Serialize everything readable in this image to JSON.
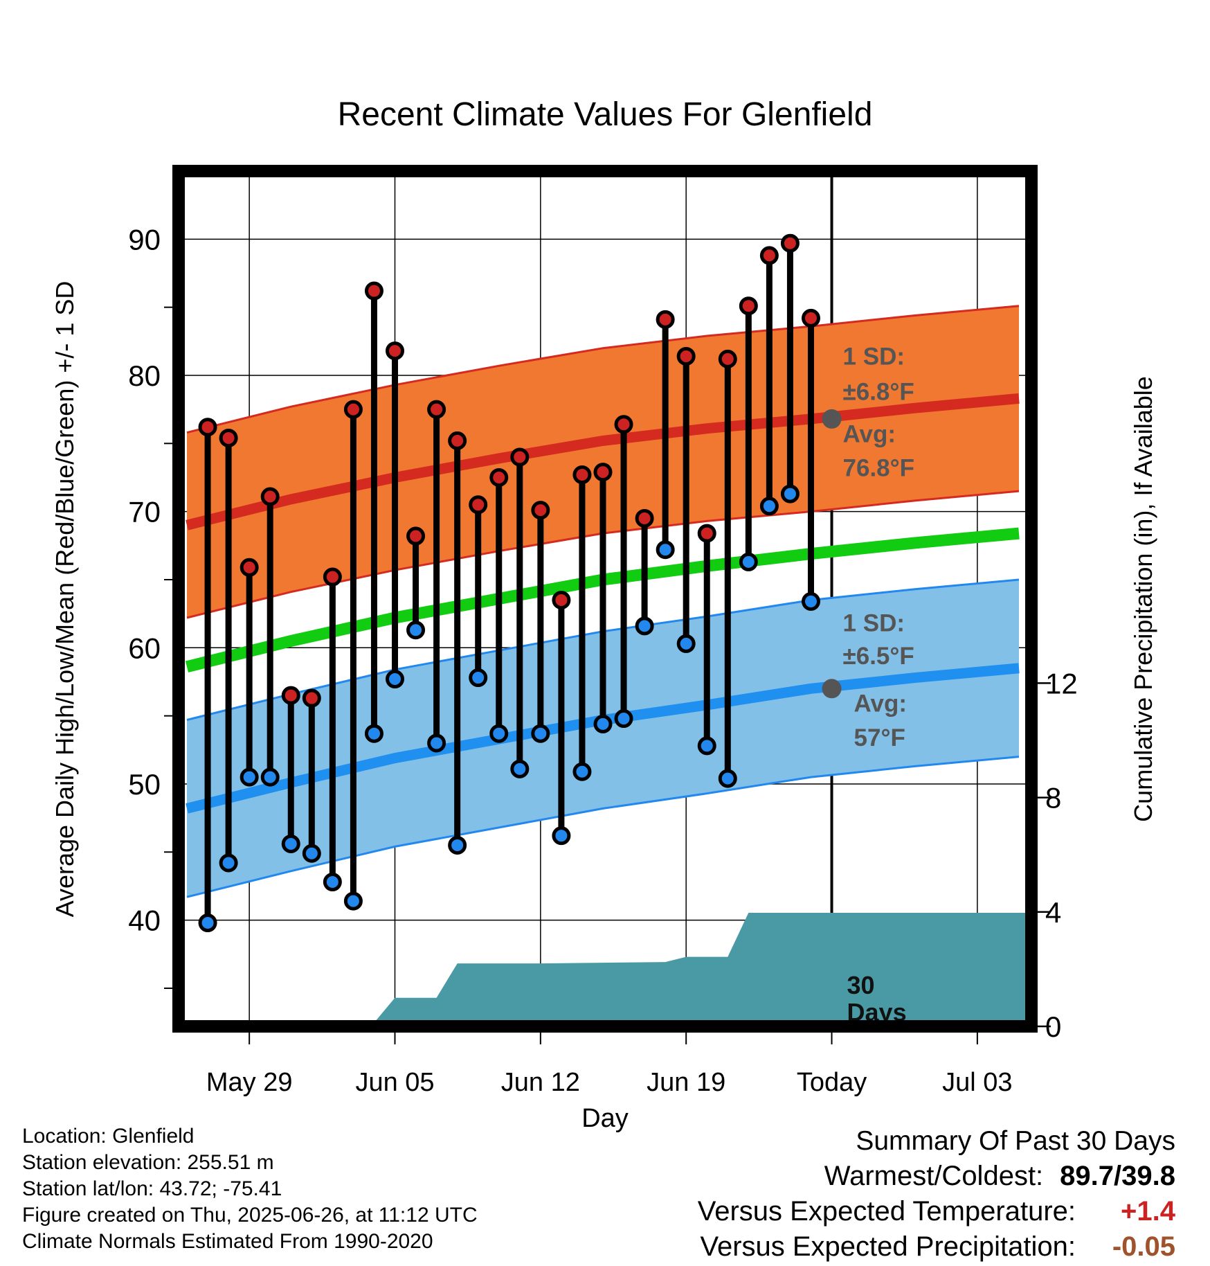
{
  "colors": {
    "high_dot": "#cc2222",
    "low_dot": "#2288ee",
    "high_band": "#f07830",
    "low_band": "#82c0e8",
    "mean_line": "#11cc11",
    "precip_fill": "#4a9aa5",
    "positive": "#cc2222",
    "negative": "#a0522d"
  },
  "chart_data": {
    "type": "line",
    "title": "Recent Climate Values For Glenfield",
    "xlabel": "Day",
    "ylabel_left": "Average Daily High/Low/Mean (Red/Blue/Green) +/- 1 SD",
    "ylabel_right": "Cumulative Precipitation (in), If Available",
    "x_ticks": [
      "May 29",
      "Jun 05",
      "Jun 12",
      "Jun 19",
      "Today",
      "Jul 03"
    ],
    "x_tick_days": [
      0,
      7,
      14,
      21,
      28,
      35
    ],
    "xlim": [
      -3.4,
      37.6
    ],
    "y_left_ticks": [
      40,
      50,
      60,
      70,
      80,
      90
    ],
    "y_left_lim": [
      32.2,
      95
    ],
    "y_right_ticks": [
      0,
      4,
      8,
      12
    ],
    "y_right_lim": [
      0,
      29.9
    ],
    "grid": true,
    "days": [
      -2,
      -1,
      0,
      1,
      2,
      3,
      4,
      5,
      6,
      7,
      8,
      9,
      10,
      11,
      12,
      13,
      14,
      15,
      16,
      17,
      18,
      19,
      20,
      21,
      22,
      23,
      24,
      25,
      26,
      27
    ],
    "series": [
      {
        "name": "High",
        "values": [
          76.2,
          75.4,
          65.9,
          71.1,
          56.5,
          56.3,
          65.2,
          77.5,
          86.2,
          81.8,
          68.2,
          77.5,
          75.2,
          70.5,
          72.5,
          74.0,
          70.1,
          63.5,
          72.7,
          72.9,
          76.4,
          69.5,
          84.1,
          81.4,
          68.4,
          81.2,
          85.1,
          88.8,
          89.7,
          84.2
        ]
      },
      {
        "name": "Low",
        "values": [
          39.8,
          44.2,
          50.5,
          50.5,
          45.6,
          44.9,
          42.8,
          41.4,
          53.7,
          57.7,
          61.3,
          53.0,
          45.5,
          57.8,
          53.7,
          51.1,
          53.7,
          46.2,
          50.9,
          54.4,
          54.8,
          61.6,
          67.2,
          60.3,
          52.8,
          50.4,
          66.3,
          70.4,
          71.3,
          63.4
        ]
      }
    ],
    "normals_days": [
      -3,
      2,
      7,
      12,
      17,
      22,
      27,
      32,
      37
    ],
    "normal_high": [
      69.0,
      70.9,
      72.5,
      73.9,
      75.2,
      76.1,
      76.8,
      77.6,
      78.3
    ],
    "normal_low": [
      48.2,
      50.1,
      51.9,
      53.3,
      54.7,
      55.8,
      57.0,
      57.8,
      58.5
    ],
    "normal_mean": [
      58.6,
      60.5,
      62.2,
      63.6,
      65.0,
      66.0,
      66.9,
      67.7,
      68.4
    ],
    "high_sd": 6.8,
    "low_sd": 6.5,
    "precip_cumulative": {
      "days": [
        -3.4,
        1,
        2,
        6,
        7,
        9,
        10,
        14,
        20,
        21,
        23,
        24,
        37.6
      ],
      "values": [
        0,
        0,
        0.13,
        0.13,
        1.0,
        1.0,
        2.2,
        2.2,
        2.25,
        2.43,
        2.43,
        3.97,
        3.97
      ]
    },
    "annotations": {
      "high_sd_label": "1 SD:",
      "high_sd_value": "±6.8°F",
      "high_avg_label": "Avg:",
      "high_avg_value": "76.8°F",
      "low_sd_label": "1 SD:",
      "low_sd_value": "±6.5°F",
      "low_avg_label": "Avg:",
      "low_avg_value": "57°F",
      "window_line1": "30",
      "window_line2": "Days"
    }
  },
  "info": {
    "location": "Location: Glenfield",
    "elevation": "Station elevation: 255.51 m",
    "latlon": "Station lat/lon: 43.72; -75.41",
    "created": "Figure created on Thu, 2025-06-26, at 11:12 UTC",
    "normals": "Climate Normals Estimated From 1990-2020"
  },
  "summary": {
    "title": "Summary Of Past 30 Days",
    "warm_label": "Warmest/Coldest:",
    "warm_value": "89.7/39.8",
    "temp_label": "Versus Expected Temperature:",
    "temp_value": "+1.4",
    "precip_label": "Versus Expected Precipitation:",
    "precip_value": "-0.05"
  }
}
